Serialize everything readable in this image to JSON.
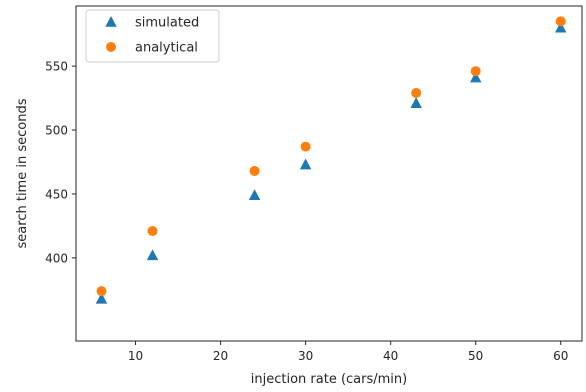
{
  "chart_data": {
    "type": "scatter",
    "title": "",
    "xlabel": "injection rate (cars/min)",
    "ylabel": "search time in seconds",
    "xlim": [
      3,
      62.5
    ],
    "ylim": [
      335,
      597
    ],
    "xticks": [
      10,
      20,
      30,
      40,
      50,
      60
    ],
    "yticks": [
      400,
      450,
      500,
      550
    ],
    "grid": false,
    "legend_position": "top-left",
    "series": [
      {
        "name": "simulated",
        "marker": "triangle",
        "color": "#1f77b4",
        "x": [
          6,
          12,
          24,
          30,
          43,
          50,
          60
        ],
        "y": [
          368,
          402,
          449,
          473,
          521,
          541,
          580
        ]
      },
      {
        "name": "analytical",
        "marker": "circle",
        "color": "#ff7f0e",
        "x": [
          6,
          12,
          24,
          30,
          43,
          50,
          60
        ],
        "y": [
          374,
          421,
          468,
          487,
          529,
          546,
          585
        ]
      }
    ]
  }
}
